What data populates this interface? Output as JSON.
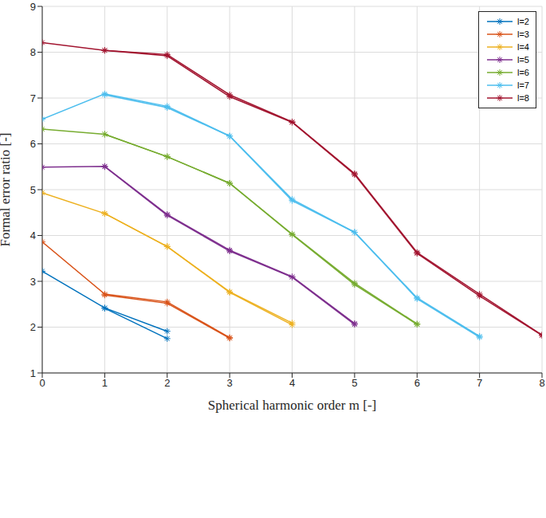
{
  "chart_data": {
    "type": "line",
    "x_label": "Spherical harmonic order m [-]",
    "y_label": "Formal error ratio [-]",
    "x": [
      0,
      1,
      2,
      3,
      4,
      5,
      6,
      7,
      8
    ],
    "xlim": [
      0,
      8
    ],
    "xticks": [
      0,
      1,
      2,
      3,
      4,
      5,
      6,
      7,
      8
    ],
    "ylim": [
      1,
      9
    ],
    "yticks": [
      1,
      2,
      3,
      4,
      5,
      6,
      7,
      8,
      9
    ],
    "grid": true,
    "legend": "upper right",
    "marker": "asterisk",
    "series": [
      {
        "name": "l=2",
        "color": "#0072BD",
        "values": [
          3.22,
          2.42,
          1.91,
          null,
          null,
          null,
          null,
          null,
          null
        ]
      },
      {
        "name": "l=2",
        "color": "#0072BD",
        "values": [
          null,
          2.41,
          1.75,
          null,
          null,
          null,
          null,
          null,
          null
        ]
      },
      {
        "name": "l=3",
        "color": "#D95319",
        "values": [
          3.86,
          2.72,
          2.55,
          1.77,
          null,
          null,
          null,
          null,
          null
        ]
      },
      {
        "name": "l=3",
        "color": "#D95319",
        "values": [
          null,
          2.7,
          2.52,
          1.76,
          null,
          null,
          null,
          null,
          null
        ]
      },
      {
        "name": "l=4",
        "color": "#EDB120",
        "values": [
          4.93,
          4.48,
          3.76,
          2.77,
          2.09,
          null,
          null,
          null,
          null
        ]
      },
      {
        "name": "l=4",
        "color": "#EDB120",
        "values": [
          null,
          4.48,
          3.76,
          2.76,
          2.05,
          null,
          null,
          null,
          null
        ]
      },
      {
        "name": "l=5",
        "color": "#7E2F8E",
        "values": [
          5.49,
          5.51,
          4.46,
          3.68,
          3.1,
          2.08,
          null,
          null,
          null
        ]
      },
      {
        "name": "l=5",
        "color": "#7E2F8E",
        "values": [
          null,
          5.5,
          4.44,
          3.66,
          3.09,
          2.06,
          null,
          null,
          null
        ]
      },
      {
        "name": "l=6",
        "color": "#77AC30",
        "values": [
          6.32,
          6.21,
          5.72,
          5.14,
          4.03,
          2.96,
          2.07,
          null,
          null
        ]
      },
      {
        "name": "l=6",
        "color": "#77AC30",
        "values": [
          null,
          6.21,
          5.72,
          5.14,
          4.02,
          2.93,
          2.06,
          null,
          null
        ]
      },
      {
        "name": "l=7",
        "color": "#4DBEEE",
        "values": [
          6.54,
          7.09,
          6.82,
          6.17,
          4.79,
          4.07,
          2.64,
          1.8,
          null
        ]
      },
      {
        "name": "l=7",
        "color": "#4DBEEE",
        "values": [
          null,
          7.07,
          6.79,
          6.17,
          4.76,
          4.07,
          2.62,
          1.78,
          null
        ]
      },
      {
        "name": "l=8",
        "color": "#A2142F",
        "values": [
          8.21,
          8.04,
          7.95,
          7.07,
          6.48,
          5.35,
          3.63,
          2.72,
          1.83
        ]
      },
      {
        "name": "l=8",
        "color": "#A2142F",
        "values": [
          null,
          8.04,
          7.92,
          7.03,
          6.47,
          5.33,
          3.61,
          2.68,
          1.82
        ]
      }
    ]
  }
}
